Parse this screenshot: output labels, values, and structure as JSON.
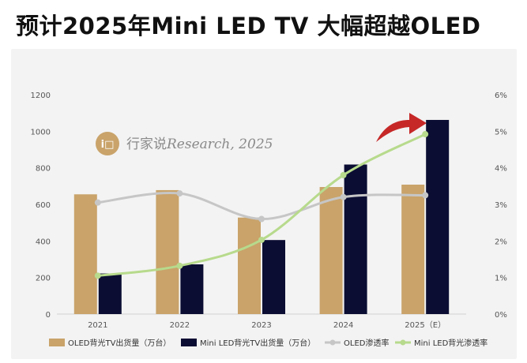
{
  "title": "预计2025年Mini LED TV 大幅超越OLED",
  "watermark": {
    "logo_text": "i□",
    "brand": "行家说",
    "credit": "Research, 2025"
  },
  "colors": {
    "oled_bar": "#c9a36a",
    "miniled_bar": "#0b0d33",
    "oled_line": "#c6c6c6",
    "miniled_line": "#b7da8c",
    "arrow": "#c62828",
    "logo": "#c9a36a"
  },
  "chart_data": {
    "type": "bar",
    "title": "预计2025年Mini LED TV 大幅超越OLED",
    "categories": [
      "2021",
      "2022",
      "2023",
      "2024",
      "2025（E）"
    ],
    "y_left": {
      "min": 0,
      "max": 1200,
      "step": 200,
      "ticks": [
        "0",
        "200",
        "400",
        "600",
        "800",
        "1000",
        "1200"
      ]
    },
    "y_right": {
      "min": 0,
      "max": 6,
      "step": 1,
      "ticks": [
        "0%",
        "1%",
        "2%",
        "3%",
        "4%",
        "5%",
        "6%"
      ]
    },
    "series": [
      {
        "name": "OLED背光TV出货量（万台）",
        "type": "bar",
        "axis": "left",
        "values": [
          655,
          678,
          528,
          695,
          708
        ]
      },
      {
        "name": "Mini LED背光TV出货量（万台）",
        "type": "bar",
        "axis": "left",
        "values": [
          222,
          272,
          405,
          818,
          1062
        ]
      },
      {
        "name": "OLED渗透率",
        "type": "line",
        "axis": "right",
        "values": [
          3.05,
          3.3,
          2.6,
          3.2,
          3.25
        ]
      },
      {
        "name": "Mini LED背光渗透率",
        "type": "line",
        "axis": "right",
        "values": [
          1.05,
          1.32,
          2.03,
          3.8,
          4.92
        ]
      }
    ],
    "legend_position": "bottom",
    "grid": false
  }
}
